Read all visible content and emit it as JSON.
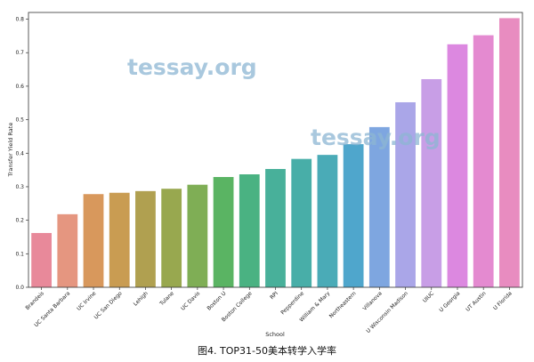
{
  "chart_data": {
    "type": "bar",
    "xlabel": "School",
    "ylabel": "Transfer Yield Rate",
    "ylim": [
      0,
      0.82
    ],
    "yticks": [
      0.0,
      0.1,
      0.2,
      0.3,
      0.4,
      0.5,
      0.6,
      0.7,
      0.8
    ],
    "categories": [
      "Brandeis",
      "UC Santa Barbara",
      "UC Irvine",
      "UC San Diego",
      "Lehigh",
      "Tulane",
      "UC Davis",
      "Boston U",
      "Boston College",
      "RPI",
      "Pepperdine",
      "William & Mary",
      "Northeastern",
      "Villanova",
      "U Wisconsin Madison",
      "UIUC",
      "U Georgia",
      "UT Austin",
      "U Florida"
    ],
    "values": [
      0.162,
      0.218,
      0.278,
      0.282,
      0.287,
      0.294,
      0.306,
      0.329,
      0.337,
      0.353,
      0.383,
      0.395,
      0.427,
      0.478,
      0.552,
      0.621,
      0.725,
      0.752,
      0.803
    ],
    "colors": [
      "#e8899a",
      "#e59680",
      "#d8985c",
      "#c99c52",
      "#b0a050",
      "#98a84f",
      "#7fae55",
      "#5ab463",
      "#4ab282",
      "#48b09a",
      "#48aea8",
      "#4aabb7",
      "#4fa6cc",
      "#7ea6e0",
      "#aaa6e8",
      "#c89ee6",
      "#dc88e0",
      "#e48ad0",
      "#e88cc0"
    ],
    "grid": false,
    "legend": "none"
  },
  "watermark": "tessay.org",
  "caption": "图4. TOP31-50美本转学入学率"
}
